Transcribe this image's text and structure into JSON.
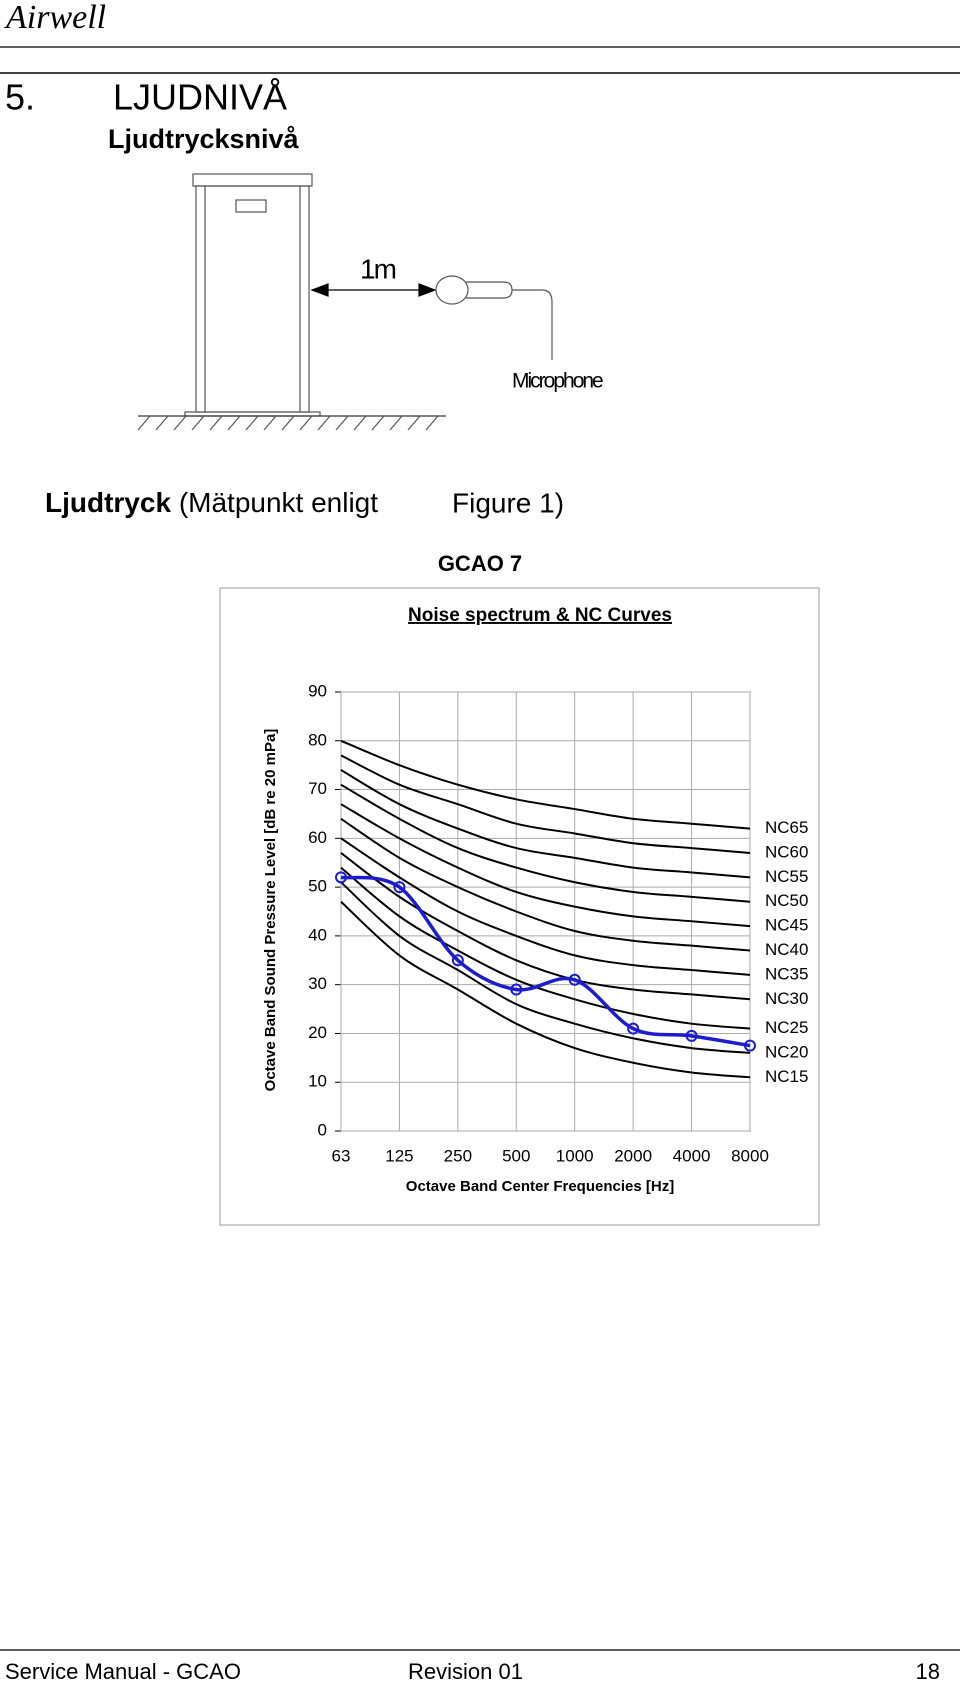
{
  "header": {
    "logo": "Airwell"
  },
  "section": {
    "number": "5.",
    "title": "LJUDNIVÅ",
    "subtitle": "Ljudtrycksnivå"
  },
  "figure": {
    "distance": "1m",
    "microphone": "Microphone"
  },
  "caption": {
    "bold": "Ljudtryck",
    "text": "(Mätpunkt enligt",
    "figure_ref": "Figure 1)"
  },
  "chart_heading": "GCAO 7",
  "chart_data": {
    "type": "line",
    "title": "Noise spectrum & NC Curves",
    "x_label": "Octave Band Center Frequencies [Hz]",
    "y_label": "Octave Band Sound Pressure Level [dB re 20 mPa]",
    "categories": [
      "63",
      "125",
      "250",
      "500",
      "1000",
      "2000",
      "4000",
      "8000"
    ],
    "ylim": [
      0,
      90
    ],
    "yticks": [
      0,
      10,
      20,
      30,
      40,
      50,
      60,
      70,
      80,
      90
    ],
    "grid": true,
    "series": [
      {
        "name": "NC65",
        "color": "#000000",
        "values": [
          80,
          75,
          71,
          68,
          66,
          64,
          63,
          62
        ]
      },
      {
        "name": "NC60",
        "color": "#000000",
        "values": [
          77,
          71,
          67,
          63,
          61,
          59,
          58,
          57
        ]
      },
      {
        "name": "NC55",
        "color": "#000000",
        "values": [
          74,
          67,
          62,
          58,
          56,
          54,
          53,
          52
        ]
      },
      {
        "name": "NC50",
        "color": "#000000",
        "values": [
          71,
          64,
          58,
          54,
          51,
          49,
          48,
          47
        ]
      },
      {
        "name": "NC45",
        "color": "#000000",
        "values": [
          67,
          60,
          54,
          49,
          46,
          44,
          43,
          42
        ]
      },
      {
        "name": "NC40",
        "color": "#000000",
        "values": [
          64,
          56,
          50,
          45,
          41,
          39,
          38,
          37
        ]
      },
      {
        "name": "NC35",
        "color": "#000000",
        "values": [
          60,
          52,
          45,
          40,
          36,
          34,
          33,
          32
        ]
      },
      {
        "name": "NC30",
        "color": "#000000",
        "values": [
          57,
          48,
          41,
          35,
          31,
          29,
          28,
          27
        ]
      },
      {
        "name": "NC25",
        "color": "#000000",
        "values": [
          54,
          44,
          37,
          31,
          27,
          24,
          22,
          21
        ]
      },
      {
        "name": "NC20",
        "color": "#000000",
        "values": [
          51,
          40,
          33,
          26,
          22,
          19,
          17,
          16
        ]
      },
      {
        "name": "NC15",
        "color": "#000000",
        "values": [
          47,
          36,
          29,
          22,
          17,
          14,
          12,
          11
        ]
      },
      {
        "color": "#1c1ccc",
        "values": [
          52,
          50,
          35,
          29,
          31,
          21,
          19.5,
          17.5
        ]
      }
    ]
  },
  "footer": {
    "left": "Service Manual - GCAO",
    "center": "Revision 01",
    "page": "18"
  }
}
